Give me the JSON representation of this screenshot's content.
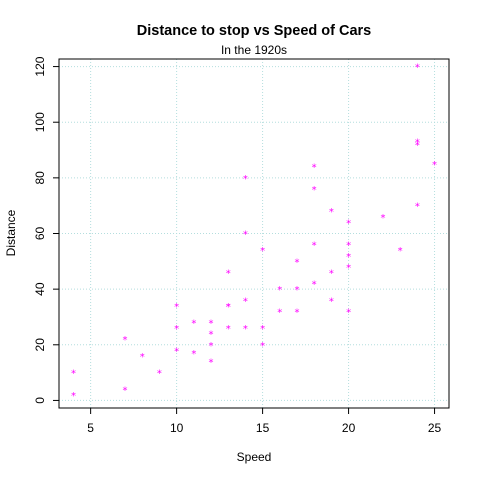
{
  "chart_data": {
    "type": "scatter",
    "title": "Distance to stop vs Speed of Cars",
    "subtitle": "In the 1920s",
    "xlabel": "Speed",
    "ylabel": "Distance",
    "xlim": [
      3.16,
      25.84
    ],
    "ylim": [
      -2.72,
      122.72
    ],
    "xticks": [
      5,
      10,
      15,
      20,
      25
    ],
    "yticks": [
      0,
      20,
      40,
      60,
      80,
      100,
      120
    ],
    "grid": true,
    "grid_color": "#b4dede",
    "point_color": "#ff00ff",
    "point_symbol": "*",
    "series": [
      {
        "x": [
          4,
          4,
          7,
          7,
          8,
          9,
          10,
          10,
          10,
          11,
          11,
          12,
          12,
          12,
          12,
          13,
          13,
          13,
          13,
          14,
          14,
          14,
          14,
          15,
          15,
          15,
          16,
          16,
          17,
          17,
          17,
          18,
          18,
          18,
          18,
          19,
          19,
          19,
          20,
          20,
          20,
          20,
          20,
          22,
          23,
          24,
          24,
          24,
          24,
          25
        ],
        "y": [
          2,
          10,
          4,
          22,
          16,
          10,
          18,
          26,
          34,
          17,
          28,
          14,
          20,
          24,
          28,
          26,
          34,
          34,
          46,
          26,
          36,
          60,
          80,
          20,
          26,
          54,
          32,
          40,
          32,
          40,
          50,
          42,
          56,
          76,
          84,
          36,
          46,
          68,
          32,
          48,
          52,
          56,
          64,
          66,
          54,
          70,
          92,
          93,
          120,
          85
        ]
      }
    ]
  }
}
